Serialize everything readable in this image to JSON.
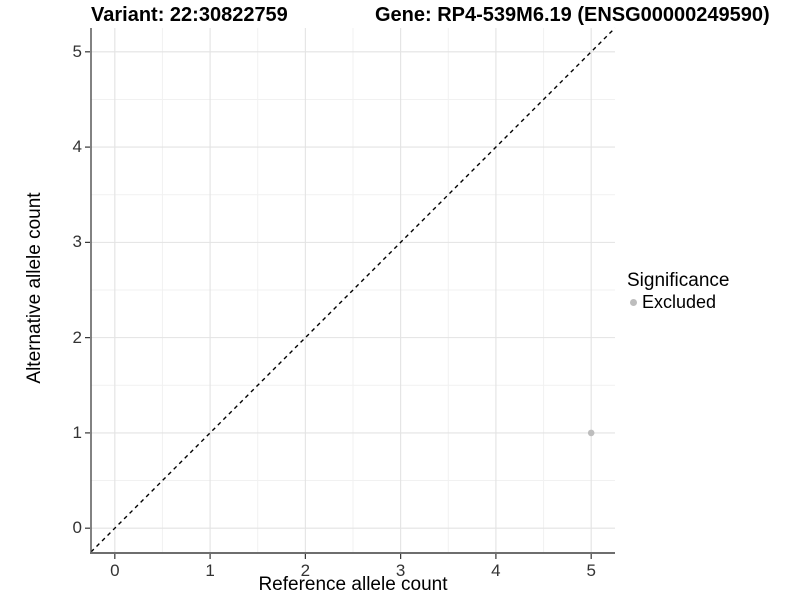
{
  "title": {
    "variant": "Variant: 22:30822759",
    "gene": "Gene: RP4-539M6.19 (ENSG00000249590)"
  },
  "axes": {
    "x": {
      "label": "Reference allele count",
      "ticks": [
        "0",
        "1",
        "2",
        "3",
        "4",
        "5"
      ]
    },
    "y": {
      "label": "Alternative allele count",
      "ticks": [
        "0",
        "1",
        "2",
        "3",
        "4",
        "5"
      ]
    }
  },
  "legend": {
    "title": "Significance",
    "items": [
      {
        "label": "Excluded",
        "color": "#bdbdbd"
      }
    ]
  },
  "colors": {
    "point": "#bdbdbd",
    "major_grid": "#e3e3e3",
    "minor_grid": "#f1f1f1",
    "axis_line": "#4d4d4d",
    "reference_line": "#000000",
    "tick_mark": "#333333"
  },
  "chart_data": {
    "type": "scatter",
    "title": "Variant: 22:30822759 | Gene: RP4-539M6.19 (ENSG00000249590)",
    "xlabel": "Reference allele count",
    "ylabel": "Alternative allele count",
    "xlim": [
      -0.25,
      5.25
    ],
    "ylim": [
      -0.25,
      5.25
    ],
    "xticks": [
      0,
      1,
      2,
      3,
      4,
      5
    ],
    "yticks": [
      0,
      1,
      2,
      3,
      4,
      5
    ],
    "minor_grid_step": 0.5,
    "grid": "major and minor, light gray on white panel",
    "legend_position": "right",
    "series": [
      {
        "name": "Excluded",
        "color": "#bdbdbd",
        "points": [
          {
            "x": 5,
            "y": 1
          }
        ]
      }
    ],
    "reference_line": {
      "note": "dashed identity line y = x, corner to corner of panel",
      "style": "dashed",
      "from": [
        -0.25,
        -0.25
      ],
      "to": [
        5.25,
        5.25
      ]
    }
  }
}
